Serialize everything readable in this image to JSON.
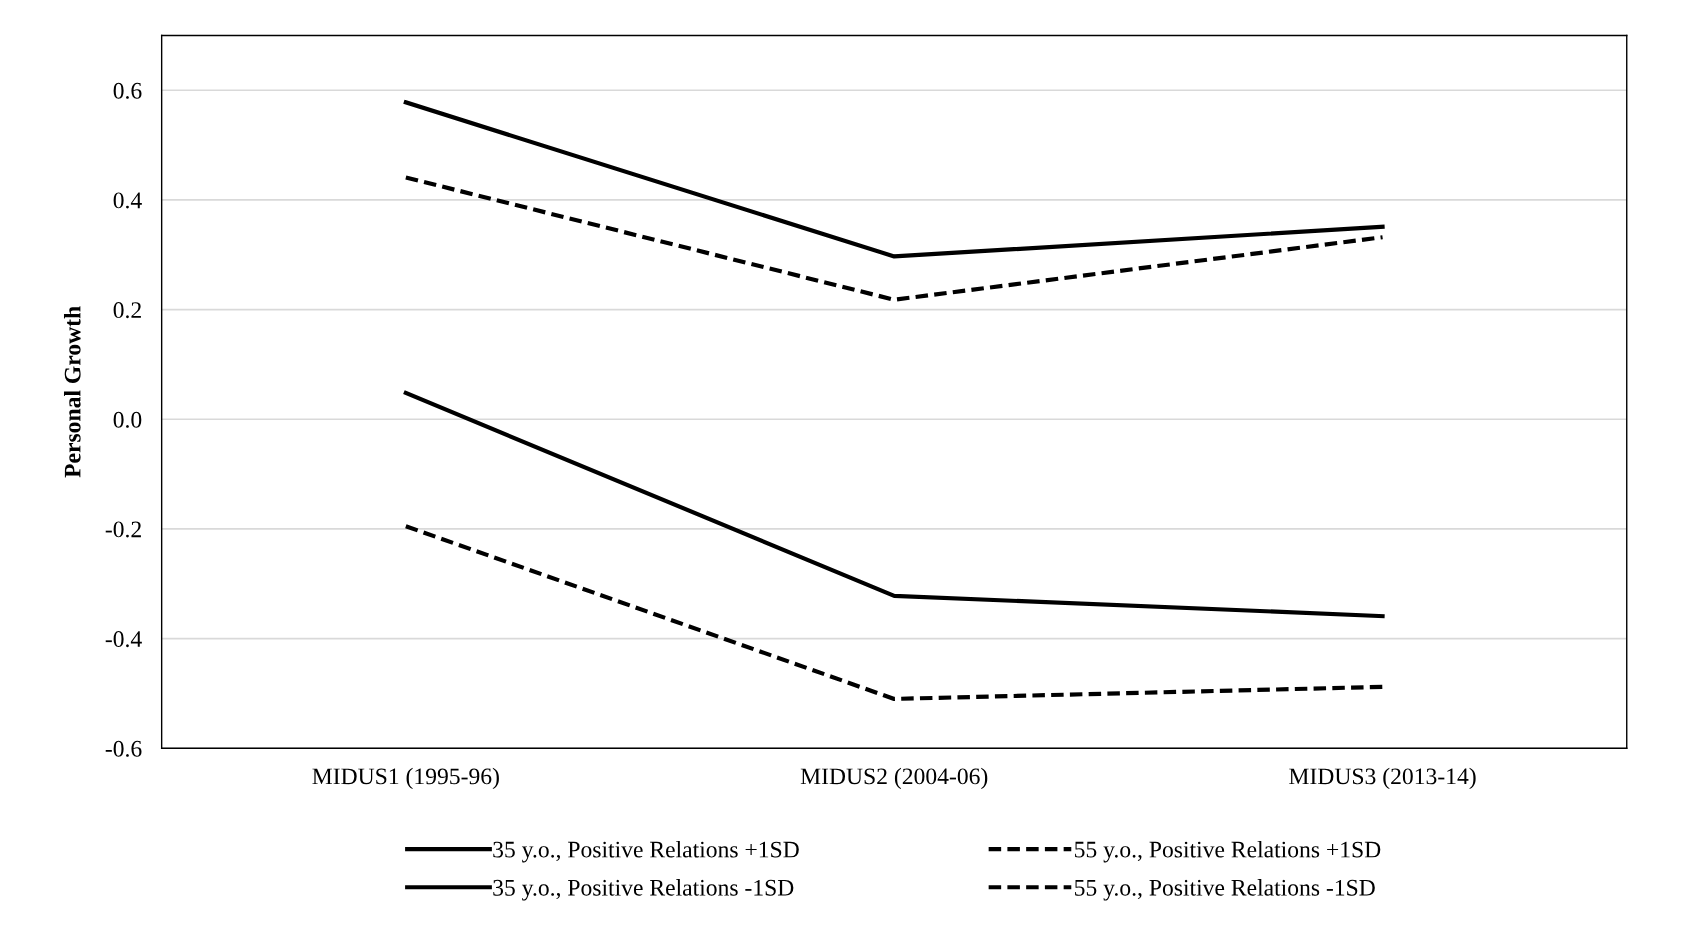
{
  "chart_data": {
    "type": "line",
    "ylabel": "Personal Growth",
    "categories": [
      "MIDUS1 (1995-96)",
      "MIDUS2 (2004-06)",
      "MIDUS3 (2013-14)"
    ],
    "series": [
      {
        "name": "35 y.o., Positive Relations +1SD",
        "color": "#000000",
        "line_style": "solid",
        "values": [
          0.578,
          0.297,
          0.351
        ]
      },
      {
        "name": "55 y.o., Positive Relations +1SD",
        "color": "#000000",
        "line_style": "dashed",
        "values": [
          0.441,
          0.218,
          0.332
        ]
      },
      {
        "name": "35 y.o., Positive Relations -1SD",
        "color": "#000000",
        "line_style": "solid",
        "values": [
          0.048,
          -0.322,
          -0.359
        ]
      },
      {
        "name": "55 y.o., Positive Relations -1SD",
        "color": "#000000",
        "line_style": "dashed",
        "values": [
          -0.195,
          -0.51,
          -0.488
        ]
      }
    ],
    "ylim": [
      -0.6,
      0.7
    ],
    "yticks": [
      {
        "value": -0.6,
        "label": "-0.6"
      },
      {
        "value": -0.4,
        "label": "-0.4"
      },
      {
        "value": -0.2,
        "label": "-0.2"
      },
      {
        "value": 0,
        "label": "0.0"
      },
      {
        "value": 0.2,
        "label": "0.2"
      },
      {
        "value": 0.4,
        "label": "0.4"
      },
      {
        "value": 0.6,
        "label": "0.6"
      }
    ],
    "grid": "y",
    "legend": "bottom",
    "marker": "none"
  }
}
